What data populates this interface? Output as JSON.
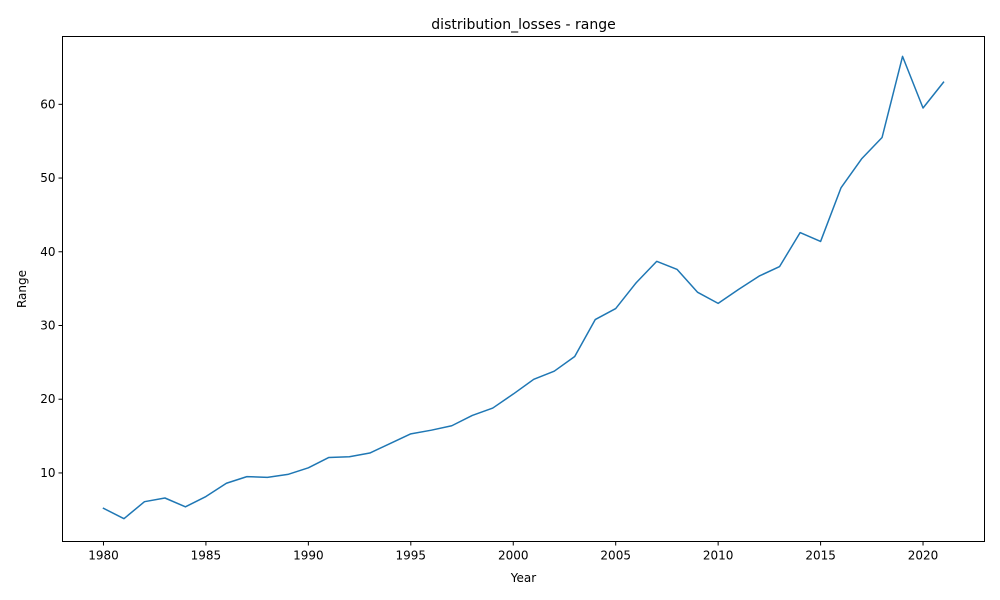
{
  "chart_data": {
    "type": "line",
    "title": "distribution_losses - range",
    "xlabel": "Year",
    "ylabel": "Range",
    "xlim": [
      1978,
      2023
    ],
    "ylim": [
      0.7,
      69.2
    ],
    "xticks": [
      1980,
      1985,
      1990,
      1995,
      2000,
      2005,
      2010,
      2015,
      2020
    ],
    "yticks": [
      10,
      20,
      30,
      40,
      50,
      60
    ],
    "grid": false,
    "legend": "none",
    "series": [
      {
        "color": "#1f77b4",
        "x": [
          1980,
          1981,
          1982,
          1983,
          1984,
          1985,
          1986,
          1987,
          1988,
          1989,
          1990,
          1991,
          1992,
          1993,
          1994,
          1995,
          1996,
          1997,
          1998,
          1999,
          2000,
          2001,
          2002,
          2003,
          2004,
          2005,
          2006,
          2007,
          2008,
          2009,
          2010,
          2011,
          2012,
          2013,
          2014,
          2015,
          2016,
          2017,
          2018,
          2019,
          2020,
          2021
        ],
        "y": [
          5.2,
          3.8,
          6.1,
          6.6,
          5.4,
          6.8,
          8.6,
          9.5,
          9.4,
          9.8,
          10.7,
          12.1,
          12.2,
          12.7,
          14.0,
          15.3,
          15.8,
          16.4,
          17.8,
          18.8,
          20.7,
          22.7,
          23.8,
          25.8,
          30.8,
          32.3,
          35.8,
          38.7,
          37.6,
          34.5,
          33.0,
          34.9,
          36.7,
          38.0,
          42.6,
          41.4,
          48.7,
          52.6,
          55.5,
          66.5,
          59.5,
          63.0
        ]
      }
    ]
  }
}
